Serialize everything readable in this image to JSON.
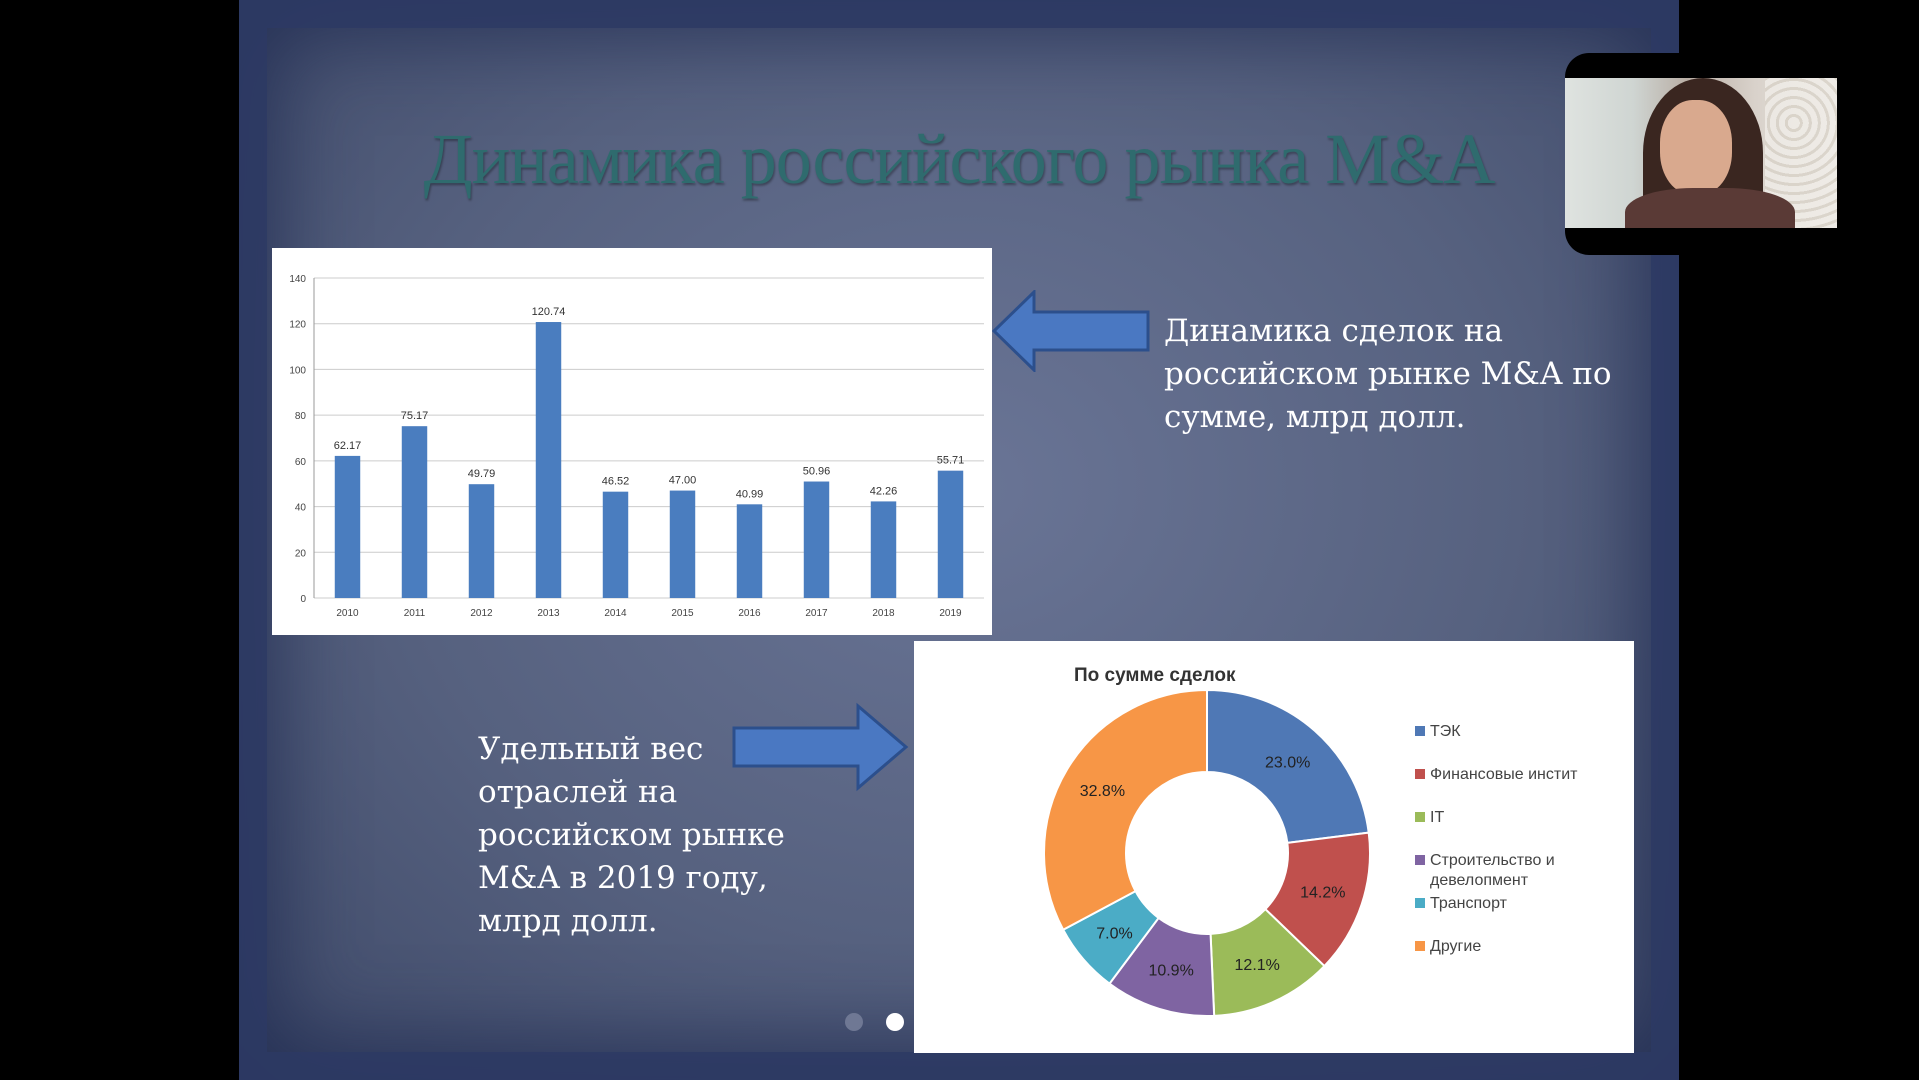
{
  "slide": {
    "title": "Динамика российского рынка M&A",
    "bar_caption": "Динамика сделок на российском рынке M&A по сумме, млрд долл.",
    "pie_caption": "Удельный вес отраслей на российском рынке M&A в 2019 году, млрд долл."
  },
  "colors": {
    "accent_arrow": "#4a78c2",
    "title": "#2f6b6e"
  },
  "chart_data": [
    {
      "type": "bar",
      "categories": [
        "2010",
        "2011",
        "2012",
        "2013",
        "2014",
        "2015",
        "2016",
        "2017",
        "2018",
        "2019"
      ],
      "values": [
        62.17,
        75.17,
        49.79,
        120.74,
        46.52,
        47.0,
        40.99,
        50.96,
        42.26,
        55.71
      ],
      "data_labels": [
        "62.17",
        "75.17",
        "49.79",
        "120.74",
        "46.52",
        "47.00",
        "40.99",
        "50.96",
        "42.26",
        "55.71"
      ],
      "y_ticks": [
        "0",
        "20",
        "40",
        "60",
        "80",
        "100",
        "120",
        "140"
      ],
      "ylim": [
        0,
        140
      ],
      "grid": true,
      "color": "#4a7dbf"
    },
    {
      "type": "pie",
      "donut": true,
      "title": "По сумме сделок",
      "legend_position": "right",
      "slices": [
        {
          "name": "ТЭК",
          "value": 23.0,
          "label": "23.0%",
          "color": "#4f78b5"
        },
        {
          "name": "Финансовые инстит",
          "value": 14.2,
          "label": "14.2%",
          "color": "#c0504d"
        },
        {
          "name": "IT",
          "value": 12.1,
          "label": "12.1%",
          "color": "#9bbb59"
        },
        {
          "name": "Строительство и девелопмент",
          "value": 10.9,
          "label": "10.9%",
          "color": "#7f64a2"
        },
        {
          "name": "Транспорт",
          "value": 7.0,
          "label": "7.0%",
          "color": "#4bacc6"
        },
        {
          "name": "Другие",
          "value": 32.8,
          "label": "32.8%",
          "color": "#f79646"
        }
      ],
      "legend": [
        "ТЭК",
        "Финансовые инстит",
        "IT",
        "Строительство и девелопмент",
        "Транспорт",
        "Другие"
      ]
    }
  ]
}
